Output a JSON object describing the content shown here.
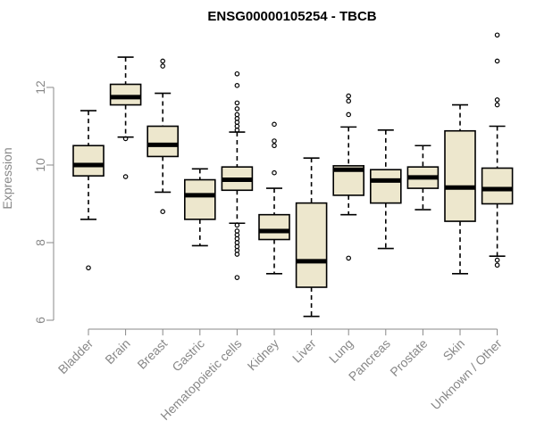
{
  "chart_data": {
    "type": "boxplot",
    "title": "ENSG00000105254 - TBCB",
    "xlabel": "",
    "ylabel": "Expression",
    "ylim": [
      6,
      13.6
    ],
    "yticks": [
      6,
      8,
      10,
      12
    ],
    "grid": false,
    "box_color": "#ede7cd",
    "categories": [
      "Bladder",
      "Brain",
      "Breast",
      "Gastric",
      "Hematopoietic cells",
      "Kidney",
      "Liver",
      "Lung",
      "Pancreas",
      "Prostate",
      "Skin",
      "Unknown / Other"
    ],
    "boxes": [
      {
        "name": "Bladder",
        "whislo": 8.6,
        "q1": 9.72,
        "med": 10.0,
        "q3": 10.5,
        "whishi": 11.4,
        "outliers": [
          7.35
        ]
      },
      {
        "name": "Brain",
        "whislo": 10.72,
        "q1": 11.55,
        "med": 11.75,
        "q3": 12.08,
        "whishi": 12.78,
        "outliers": [
          9.7,
          10.68
        ]
      },
      {
        "name": "Breast",
        "whislo": 9.3,
        "q1": 10.22,
        "med": 10.52,
        "q3": 11.0,
        "whishi": 11.85,
        "outliers": [
          8.8,
          12.55,
          12.68
        ]
      },
      {
        "name": "Gastric",
        "whislo": 7.92,
        "q1": 8.6,
        "med": 9.22,
        "q3": 9.62,
        "whishi": 9.9,
        "outliers": []
      },
      {
        "name": "Hematopoietic cells",
        "whislo": 8.5,
        "q1": 9.35,
        "med": 9.62,
        "q3": 9.95,
        "whishi": 10.85,
        "outliers": [
          7.1,
          7.7,
          7.8,
          7.9,
          8.0,
          8.1,
          8.2,
          8.3,
          8.45,
          10.9,
          11.0,
          11.1,
          11.2,
          11.3,
          11.45,
          11.6,
          12.05,
          12.35
        ]
      },
      {
        "name": "Kidney",
        "whislo": 7.2,
        "q1": 8.08,
        "med": 8.3,
        "q3": 8.72,
        "whishi": 9.4,
        "outliers": [
          9.8,
          10.5,
          10.62,
          11.05
        ]
      },
      {
        "name": "Liver",
        "whislo": 6.1,
        "q1": 6.85,
        "med": 7.52,
        "q3": 9.02,
        "whishi": 10.18,
        "outliers": []
      },
      {
        "name": "Lung",
        "whislo": 8.72,
        "q1": 9.22,
        "med": 9.88,
        "q3": 9.98,
        "whishi": 10.98,
        "outliers": [
          7.6,
          11.3,
          11.65,
          11.78
        ]
      },
      {
        "name": "Pancreas",
        "whislo": 7.85,
        "q1": 9.02,
        "med": 9.6,
        "q3": 9.88,
        "whishi": 10.9,
        "outliers": []
      },
      {
        "name": "Prostate",
        "whislo": 8.85,
        "q1": 9.4,
        "med": 9.68,
        "q3": 9.95,
        "whishi": 10.5,
        "outliers": []
      },
      {
        "name": "Skin",
        "whislo": 7.2,
        "q1": 8.55,
        "med": 9.42,
        "q3": 10.88,
        "whishi": 11.55,
        "outliers": []
      },
      {
        "name": "Unknown / Other",
        "whislo": 7.65,
        "q1": 9.0,
        "med": 9.38,
        "q3": 9.92,
        "whishi": 11.0,
        "outliers": [
          7.42,
          7.55,
          11.55,
          11.68,
          12.68,
          13.35
        ]
      }
    ]
  }
}
